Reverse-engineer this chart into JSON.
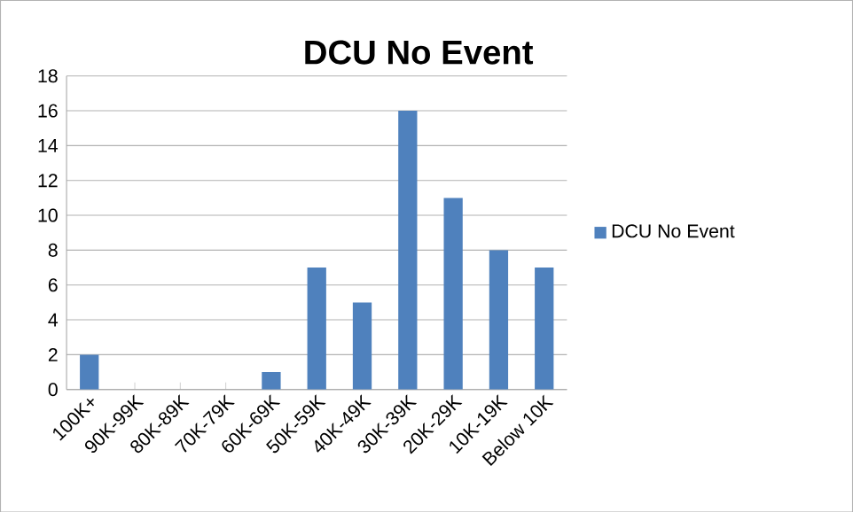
{
  "chart_data": {
    "type": "bar",
    "title": "DCU No Event",
    "categories": [
      "100K+",
      "90K-99K",
      "80K-89K",
      "70K-79K",
      "60K-69K",
      "50K-59K",
      "40K-49K",
      "30K-39K",
      "20K-29K",
      "10K-19K",
      "Below 10K"
    ],
    "series": [
      {
        "name": "DCU No Event",
        "color": "#4f81bd",
        "values": [
          2,
          0,
          0,
          0,
          1,
          7,
          5,
          16,
          11,
          8,
          7
        ]
      }
    ],
    "ylim": [
      0,
      18
    ],
    "yticks": [
      0,
      2,
      4,
      6,
      8,
      10,
      12,
      14,
      16,
      18
    ],
    "grid": "y",
    "legend": "right"
  }
}
